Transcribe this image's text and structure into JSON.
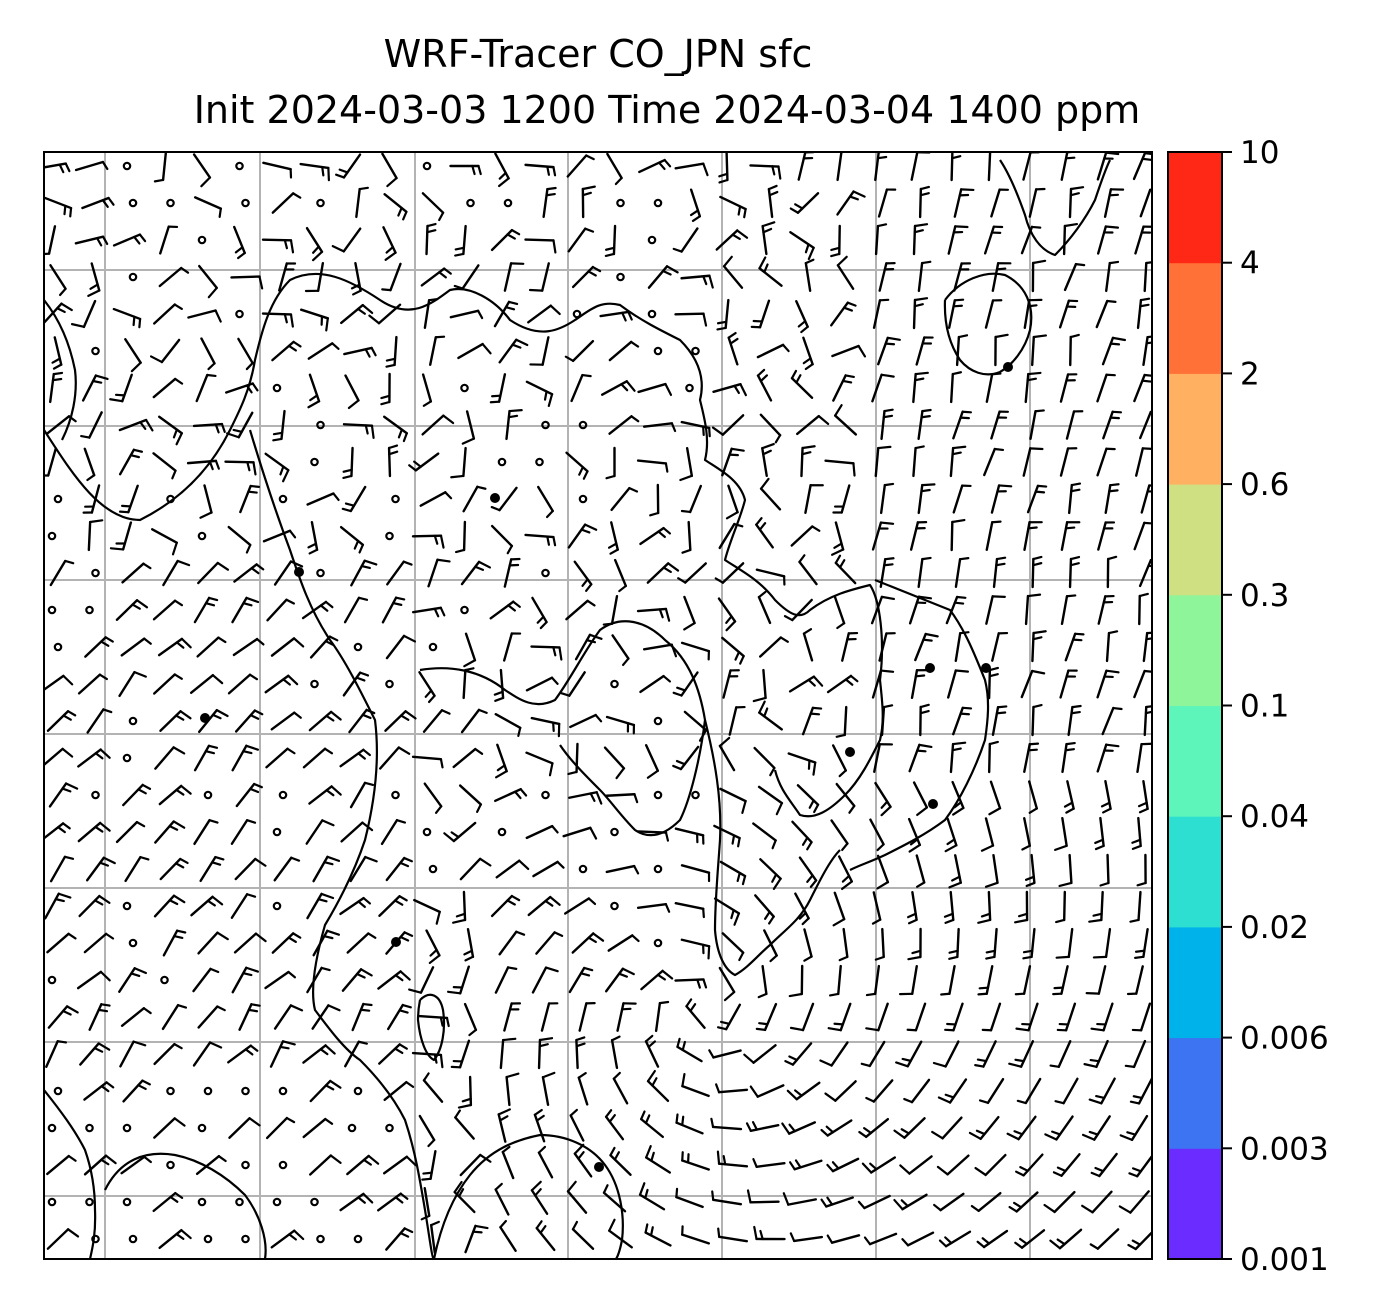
{
  "title": {
    "line1": "WRF-Tracer CO_JPN sfc",
    "line2": "Init 2024-03-03 1200 Time 2024-03-04 1400 ppm"
  },
  "map": {
    "grid_lines": true,
    "grid_color": "#b3b3b3",
    "coastline_color": "#000000",
    "wind_barb_color": "#000000",
    "calm_wind_symbol": "open-circle"
  },
  "colorbar": {
    "tick_labels": [
      "0.001",
      "0.003",
      "0.006",
      "0.02",
      "0.04",
      "0.1",
      "0.3",
      "0.6",
      "2",
      "4",
      "10"
    ],
    "colors": [
      "#6a2cff",
      "#3c74f2",
      "#00b2ea",
      "#2cdfd1",
      "#5ef5ba",
      "#8ff59a",
      "#cfe083",
      "#ffb061",
      "#ff7136",
      "#ff2716"
    ]
  }
}
